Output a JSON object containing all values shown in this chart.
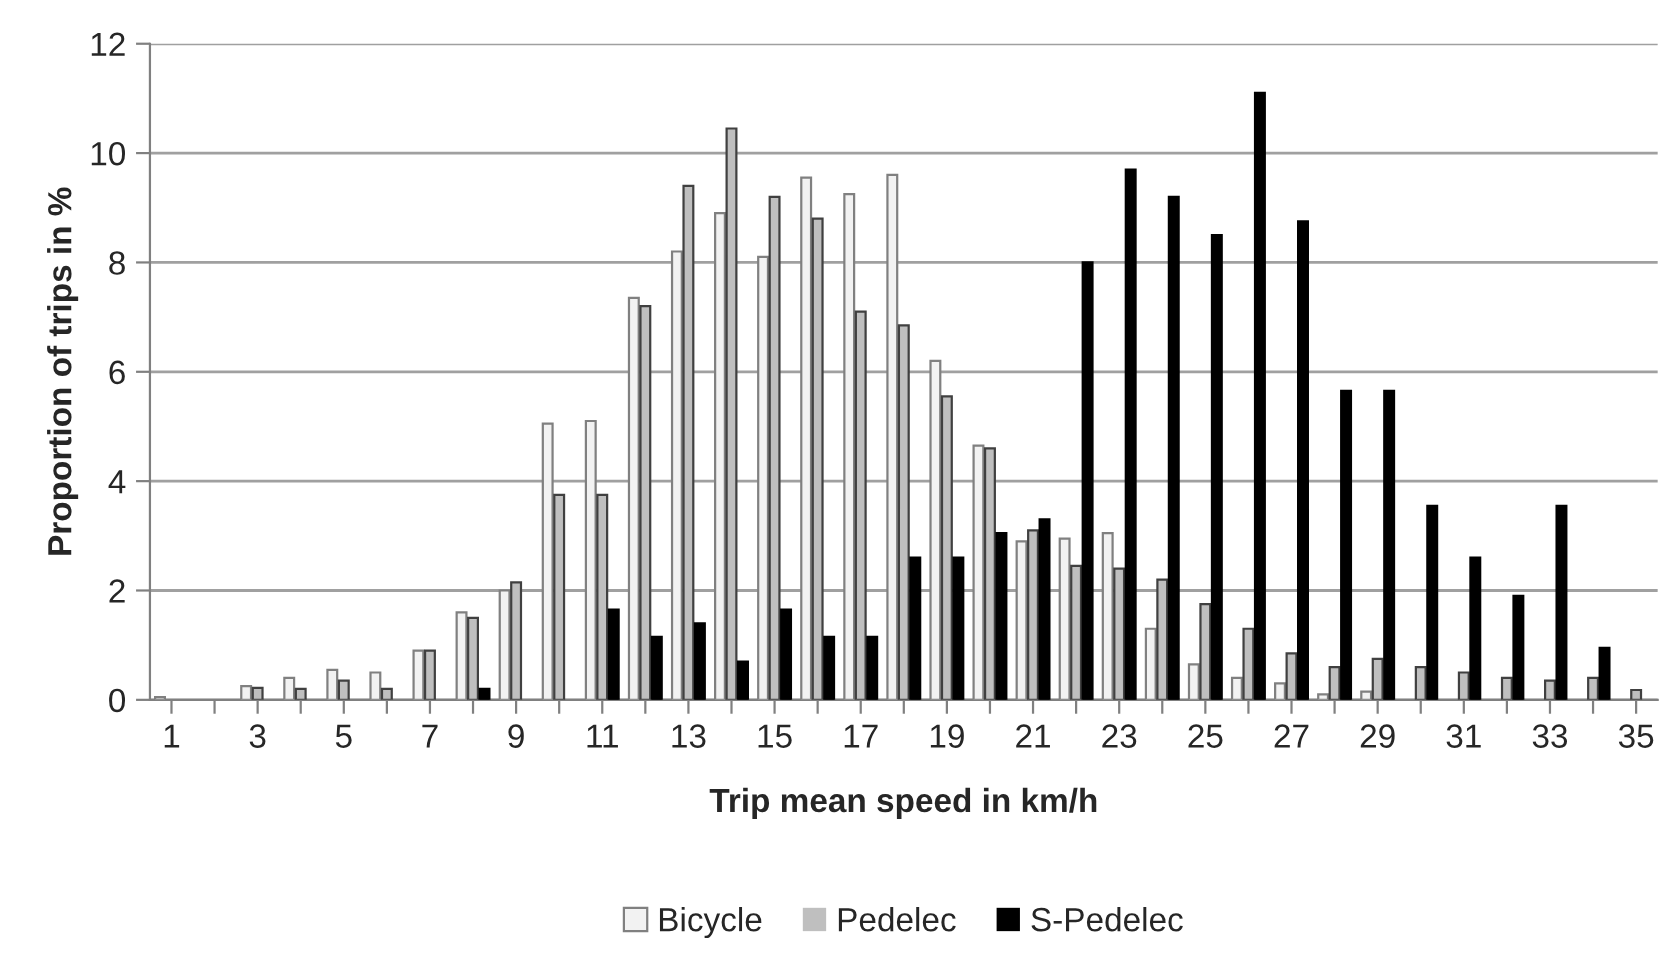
{
  "chart_data": {
    "type": "bar",
    "xlabel": "Trip mean speed in km/h",
    "ylabel": "Proportion of trips in %",
    "categories": [
      "1",
      null,
      "3",
      null,
      "5",
      null,
      "7",
      null,
      "9",
      null,
      "11",
      null,
      "13",
      null,
      "15",
      null,
      "17",
      null,
      "19",
      null,
      "21",
      null,
      "23",
      null,
      "25",
      null,
      "27",
      null,
      "29",
      null,
      "31",
      null,
      "33",
      null,
      "35"
    ],
    "series": [
      {
        "name": "Bicycle",
        "color": "#f2f2f2",
        "values": [
          0.05,
          0,
          0.25,
          0.4,
          0.55,
          0.5,
          0.9,
          1.6,
          2.0,
          5.05,
          5.1,
          7.35,
          8.2,
          8.9,
          8.1,
          9.55,
          9.25,
          9.6,
          6.2,
          4.65,
          2.9,
          2.95,
          3.05,
          1.3,
          0.65,
          0.4,
          0.3,
          0.1,
          0.15,
          0,
          0,
          0,
          0,
          0,
          0
        ]
      },
      {
        "name": "Pedelec",
        "color": "#bfbfbf",
        "values": [
          0,
          0,
          0.22,
          0.2,
          0.35,
          0.2,
          0.9,
          1.5,
          2.15,
          3.75,
          3.75,
          7.2,
          9.4,
          10.45,
          9.2,
          8.8,
          7.1,
          6.85,
          5.55,
          4.6,
          3.1,
          2.45,
          2.4,
          2.2,
          1.75,
          1.3,
          0.85,
          0.6,
          0.75,
          0.6,
          0.5,
          0.4,
          0.35,
          0.4,
          0.18
        ]
      },
      {
        "name": "S-Pedelec",
        "color": "#000000",
        "values": [
          0,
          0,
          0,
          0,
          0,
          0,
          0,
          0.2,
          0,
          0,
          1.65,
          1.15,
          1.4,
          0.7,
          1.65,
          1.15,
          1.15,
          2.6,
          2.6,
          3.05,
          3.3,
          8.0,
          9.7,
          9.2,
          8.5,
          11.1,
          8.75,
          5.65,
          5.65,
          3.55,
          2.6,
          1.9,
          3.55,
          0.95,
          0
        ]
      }
    ],
    "ylim": [
      0,
      12
    ],
    "yticks": [
      0,
      2,
      4,
      6,
      8,
      10,
      12
    ],
    "grid": "y",
    "legend": "bottom"
  }
}
